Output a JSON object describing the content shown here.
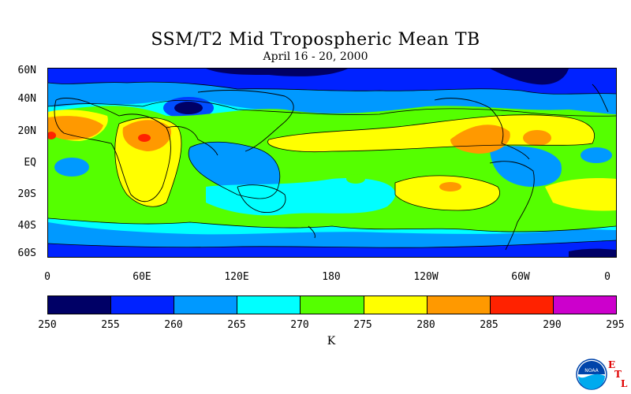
{
  "title": "SSM/T2 Mid Tropospheric Mean TB",
  "subtitle": "April 16 - 20, 2000",
  "lat_labels": [
    "60N",
    "40N",
    "20N",
    "EQ",
    "20S",
    "40S",
    "60S"
  ],
  "lon_labels": [
    "0",
    "60E",
    "120E",
    "180",
    "120W",
    "60W",
    "0"
  ],
  "colorbar": {
    "colors": [
      "#000066",
      "#0022ff",
      "#0099ff",
      "#00ffff",
      "#55ff00",
      "#ffff00",
      "#ff9900",
      "#ff2200",
      "#cc00cc"
    ],
    "ticks": [
      "250",
      "255",
      "260",
      "265",
      "270",
      "275",
      "280",
      "285",
      "290",
      "295"
    ],
    "unit": "K"
  },
  "logo": {
    "icon": "noaa-logo",
    "text": "NOAA",
    "etl_letters": [
      "E",
      "T",
      "L"
    ]
  }
}
